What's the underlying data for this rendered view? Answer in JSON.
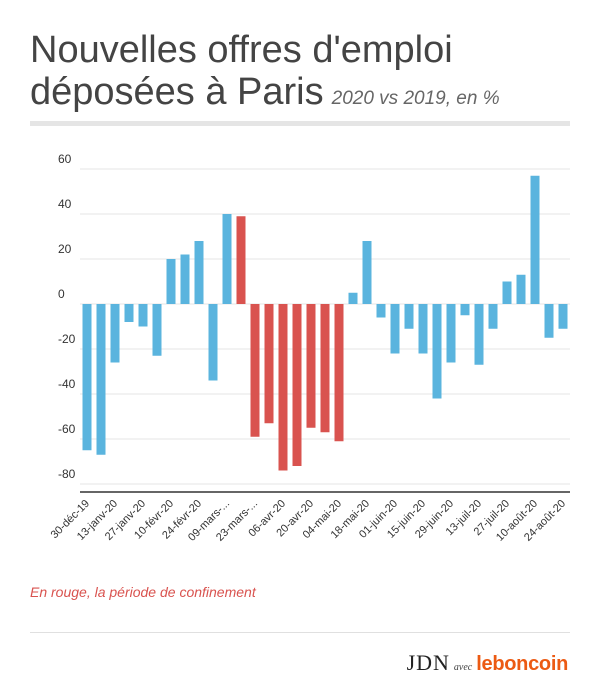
{
  "header": {
    "title_line1": "Nouvelles offres d'emploi",
    "title_line2": "déposées à Paris",
    "subtitle": "2020 vs 2019, en %"
  },
  "note": "En rouge, la période de confinement",
  "footer": {
    "brand1": "JDN",
    "avec": "avec",
    "brand2": "leboncoin"
  },
  "colors": {
    "normal": "#5ab4de",
    "confinement": "#d9534f",
    "axis": "#333333",
    "grid": "#e6e6e6",
    "tick_text": "#333333"
  },
  "chart_data": {
    "type": "bar",
    "title": "Nouvelles offres d'emploi déposées à Paris",
    "subtitle": "2020 vs 2019, en %",
    "ylim": [
      -85,
      62
    ],
    "yticks": [
      60,
      40,
      20,
      0,
      -20,
      -40,
      -60,
      -80
    ],
    "grid": true,
    "x_tick_labels": [
      "30-déc-19",
      "13-janv-20",
      "27-janv-20",
      "10-févr-20",
      "24-févr-20",
      "09-mars-...",
      "23-mars-...",
      "06-avr-20",
      "20-avr-20",
      "04-mai-20",
      "18-mai-20",
      "01-juin-20",
      "15-juin-20",
      "29-juin-20",
      "13-juil-20",
      "27-juil-20",
      "10-août-20",
      "24-août-20"
    ],
    "values": [
      -65,
      -67,
      -26,
      -8,
      -10,
      -23,
      20,
      22,
      28,
      -34,
      40,
      39,
      -59,
      -53,
      -74,
      -72,
      -55,
      -57,
      -61,
      5,
      28,
      -6,
      -22,
      -11,
      -22,
      -42,
      -26,
      -5,
      -27,
      -11,
      10,
      13,
      57,
      -15,
      -11
    ],
    "highlight": [
      false,
      false,
      false,
      false,
      false,
      false,
      false,
      false,
      false,
      false,
      false,
      true,
      true,
      true,
      true,
      true,
      true,
      true,
      true,
      false,
      false,
      false,
      false,
      false,
      false,
      false,
      false,
      false,
      false,
      false,
      false,
      false,
      false,
      false,
      false
    ]
  }
}
